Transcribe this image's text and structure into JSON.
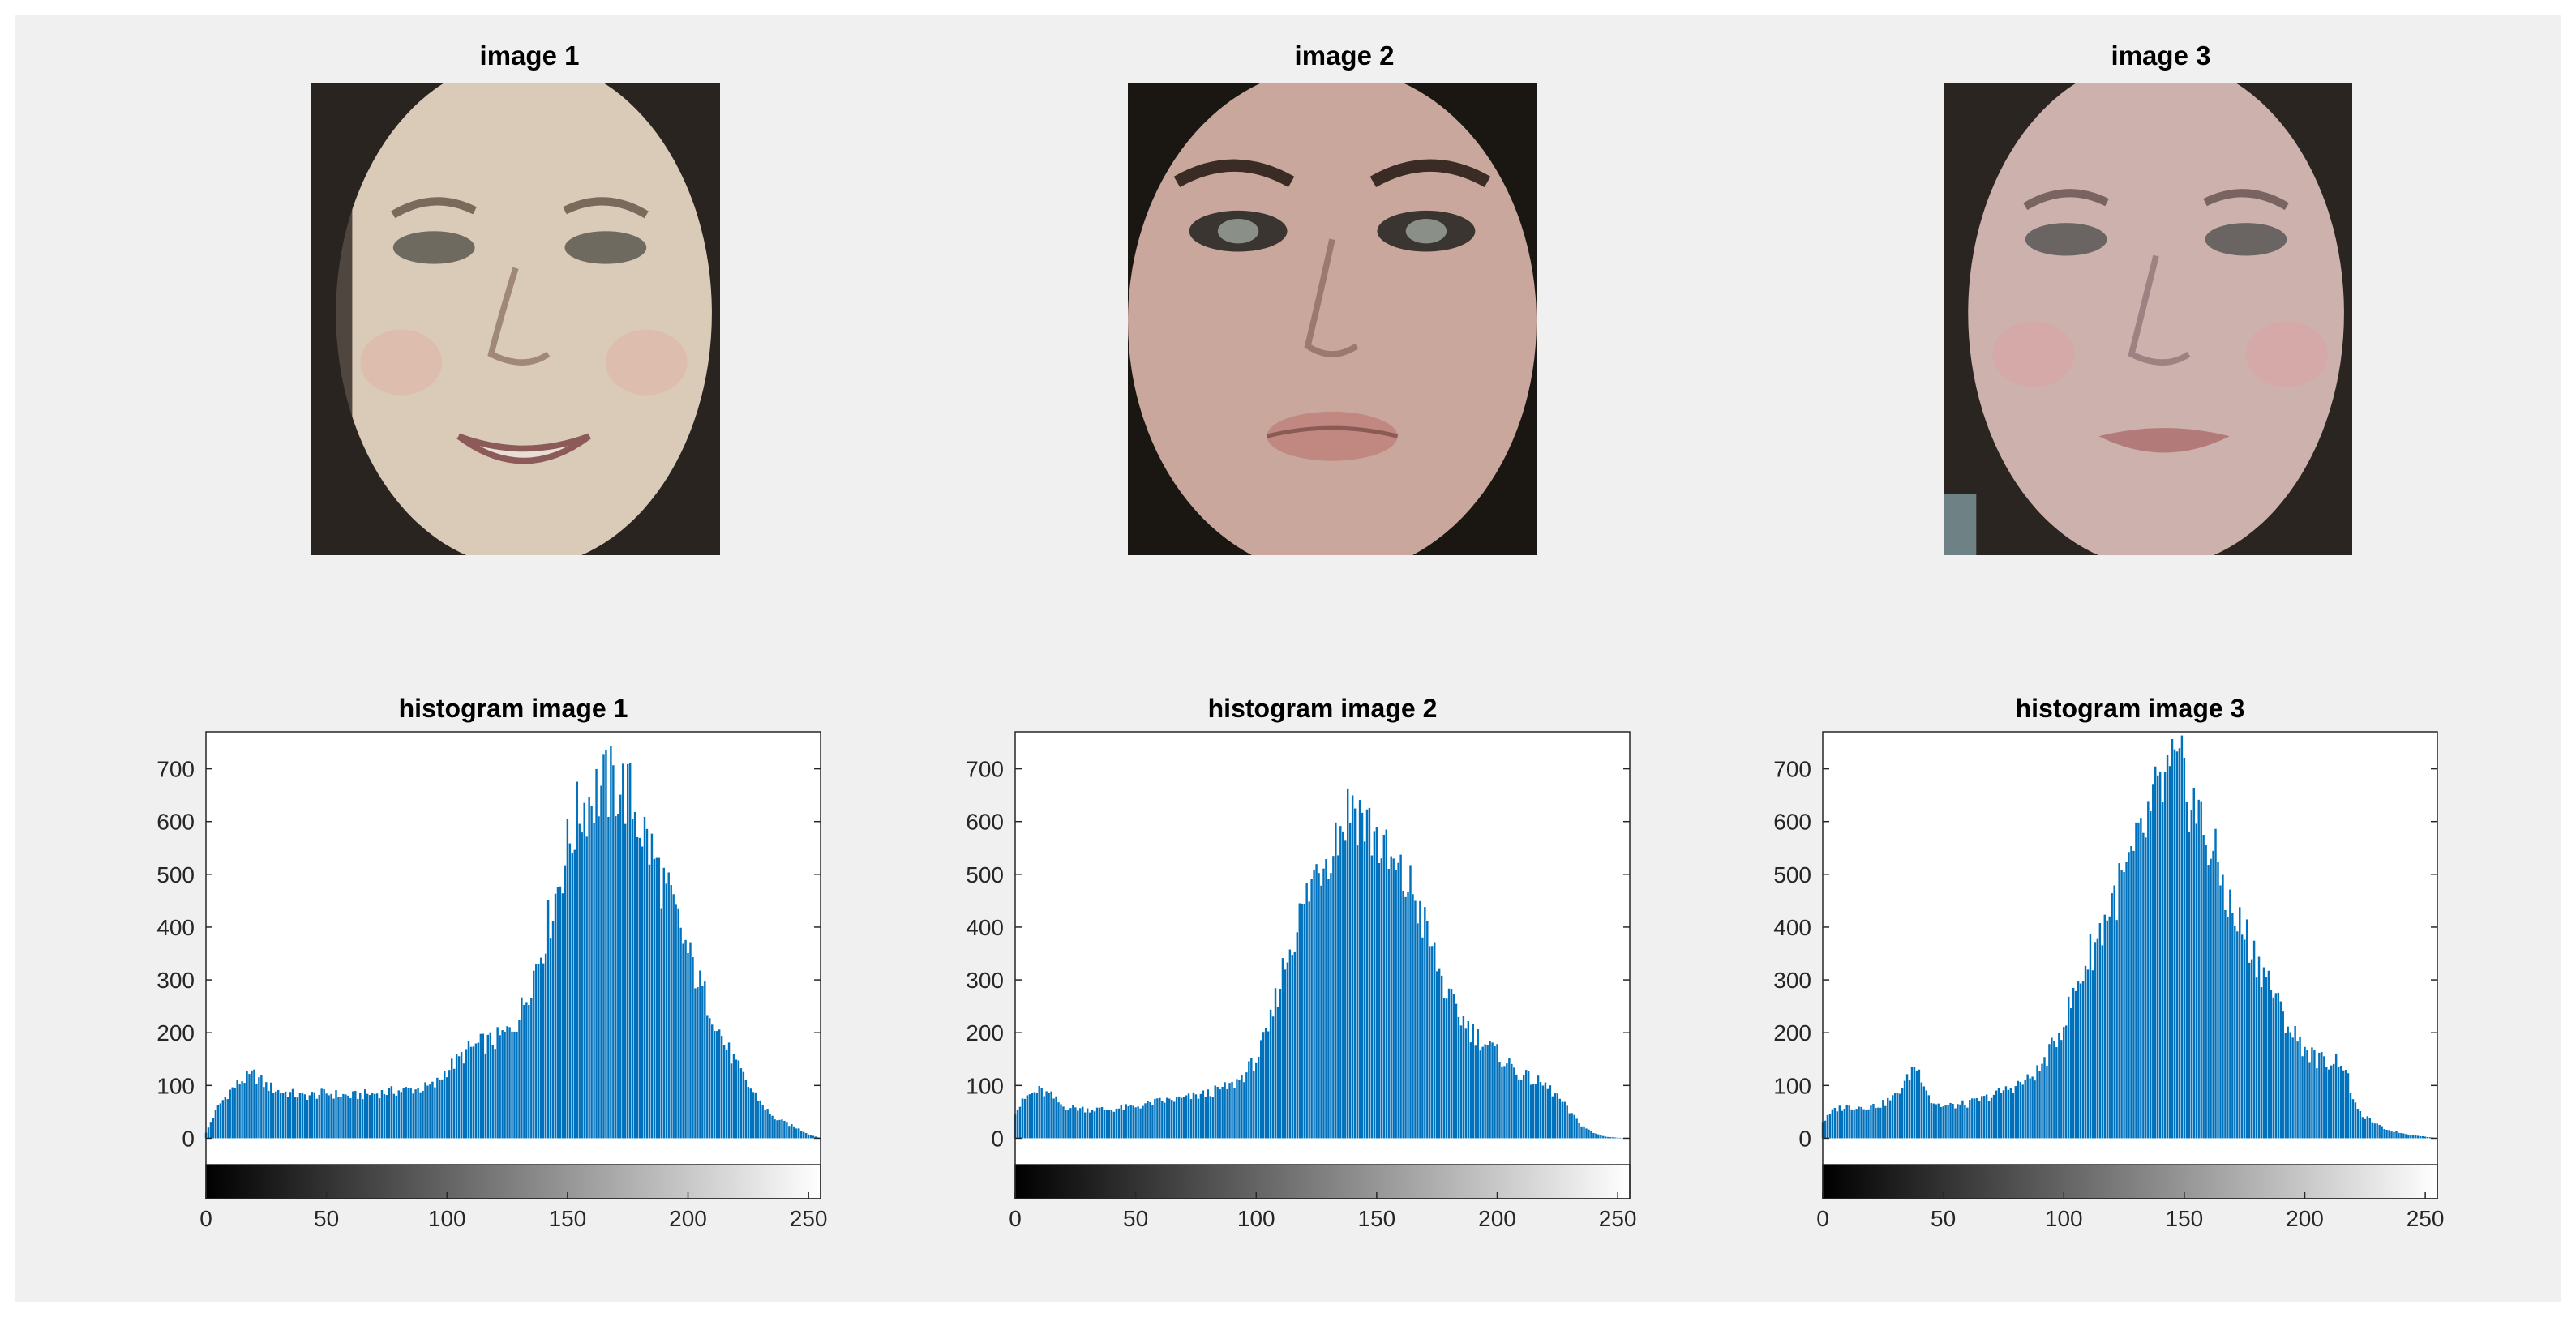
{
  "colors": {
    "figure_background": "#f0f0f0",
    "bar": "#0072bd",
    "axes": "#262626"
  },
  "images": [
    {
      "title": "image 1",
      "skin": "#d9cbb7",
      "hair": "#2a2420"
    },
    {
      "title": "image 2",
      "skin": "#c9a79c",
      "hair": "#1a1612"
    },
    {
      "title": "image 3",
      "skin": "#cdb1ad",
      "hair": "#2b2522"
    }
  ],
  "chart_data": [
    {
      "type": "bar",
      "title": "histogram image 1",
      "xlim": [
        0,
        255
      ],
      "ylim": [
        -50,
        770
      ],
      "xticks": [
        0,
        50,
        100,
        150,
        200,
        250
      ],
      "yticks": [
        0,
        100,
        200,
        300,
        400,
        500,
        600,
        700
      ],
      "colorbar": "grayscale 0-255",
      "anchors": [
        [
          0,
          10
        ],
        [
          5,
          60
        ],
        [
          10,
          90
        ],
        [
          15,
          110
        ],
        [
          20,
          120
        ],
        [
          25,
          100
        ],
        [
          30,
          90
        ],
        [
          40,
          80
        ],
        [
          50,
          85
        ],
        [
          60,
          80
        ],
        [
          70,
          85
        ],
        [
          80,
          90
        ],
        [
          90,
          95
        ],
        [
          95,
          100
        ],
        [
          100,
          130
        ],
        [
          105,
          150
        ],
        [
          110,
          170
        ],
        [
          115,
          180
        ],
        [
          120,
          185
        ],
        [
          125,
          200
        ],
        [
          130,
          230
        ],
        [
          135,
          300
        ],
        [
          140,
          370
        ],
        [
          145,
          460
        ],
        [
          150,
          550
        ],
        [
          155,
          620
        ],
        [
          160,
          650
        ],
        [
          165,
          665
        ],
        [
          170,
          670
        ],
        [
          175,
          655
        ],
        [
          180,
          600
        ],
        [
          185,
          540
        ],
        [
          190,
          480
        ],
        [
          195,
          420
        ],
        [
          200,
          350
        ],
        [
          205,
          290
        ],
        [
          210,
          240
        ],
        [
          215,
          180
        ],
        [
          220,
          140
        ],
        [
          225,
          100
        ],
        [
          230,
          70
        ],
        [
          235,
          40
        ],
        [
          240,
          30
        ],
        [
          245,
          20
        ],
        [
          250,
          8
        ],
        [
          255,
          0
        ]
      ]
    },
    {
      "type": "bar",
      "title": "histogram image 2",
      "xlim": [
        0,
        255
      ],
      "ylim": [
        -50,
        770
      ],
      "xticks": [
        0,
        50,
        100,
        150,
        200,
        250
      ],
      "yticks": [
        0,
        100,
        200,
        300,
        400,
        500,
        600,
        700
      ],
      "colorbar": "grayscale 0-255",
      "anchors": [
        [
          0,
          50
        ],
        [
          5,
          80
        ],
        [
          10,
          90
        ],
        [
          15,
          80
        ],
        [
          20,
          60
        ],
        [
          30,
          55
        ],
        [
          40,
          55
        ],
        [
          50,
          60
        ],
        [
          60,
          70
        ],
        [
          70,
          75
        ],
        [
          80,
          85
        ],
        [
          90,
          100
        ],
        [
          95,
          120
        ],
        [
          100,
          150
        ],
        [
          105,
          200
        ],
        [
          110,
          300
        ],
        [
          115,
          380
        ],
        [
          120,
          440
        ],
        [
          125,
          510
        ],
        [
          130,
          550
        ],
        [
          135,
          590
        ],
        [
          140,
          640
        ],
        [
          145,
          600
        ],
        [
          150,
          570
        ],
        [
          155,
          520
        ],
        [
          160,
          490
        ],
        [
          165,
          470
        ],
        [
          170,
          400
        ],
        [
          175,
          330
        ],
        [
          180,
          260
        ],
        [
          185,
          230
        ],
        [
          190,
          200
        ],
        [
          195,
          180
        ],
        [
          200,
          160
        ],
        [
          205,
          140
        ],
        [
          210,
          120
        ],
        [
          215,
          110
        ],
        [
          220,
          100
        ],
        [
          225,
          80
        ],
        [
          230,
          50
        ],
        [
          235,
          25
        ],
        [
          240,
          10
        ],
        [
          245,
          3
        ],
        [
          250,
          1
        ],
        [
          255,
          0
        ]
      ]
    },
    {
      "type": "bar",
      "title": "histogram image 3",
      "xlim": [
        0,
        255
      ],
      "ylim": [
        -50,
        770
      ],
      "xticks": [
        0,
        50,
        100,
        150,
        200,
        250
      ],
      "yticks": [
        0,
        100,
        200,
        300,
        400,
        500,
        600,
        700
      ],
      "colorbar": "grayscale 0-255",
      "anchors": [
        [
          0,
          30
        ],
        [
          5,
          55
        ],
        [
          10,
          60
        ],
        [
          15,
          60
        ],
        [
          20,
          60
        ],
        [
          25,
          65
        ],
        [
          30,
          80
        ],
        [
          35,
          110
        ],
        [
          38,
          140
        ],
        [
          42,
          110
        ],
        [
          45,
          70
        ],
        [
          50,
          60
        ],
        [
          60,
          65
        ],
        [
          70,
          80
        ],
        [
          80,
          100
        ],
        [
          85,
          110
        ],
        [
          90,
          130
        ],
        [
          95,
          170
        ],
        [
          100,
          220
        ],
        [
          105,
          280
        ],
        [
          110,
          340
        ],
        [
          115,
          390
        ],
        [
          120,
          450
        ],
        [
          125,
          490
        ],
        [
          130,
          540
        ],
        [
          135,
          600
        ],
        [
          140,
          660
        ],
        [
          145,
          690
        ],
        [
          150,
          680
        ],
        [
          155,
          620
        ],
        [
          160,
          560
        ],
        [
          165,
          500
        ],
        [
          170,
          420
        ],
        [
          175,
          390
        ],
        [
          180,
          340
        ],
        [
          185,
          300
        ],
        [
          190,
          240
        ],
        [
          195,
          200
        ],
        [
          200,
          170
        ],
        [
          205,
          150
        ],
        [
          210,
          145
        ],
        [
          215,
          150
        ],
        [
          218,
          110
        ],
        [
          222,
          50
        ],
        [
          230,
          25
        ],
        [
          235,
          15
        ],
        [
          240,
          10
        ],
        [
          245,
          6
        ],
        [
          250,
          3
        ],
        [
          255,
          0
        ]
      ]
    }
  ]
}
